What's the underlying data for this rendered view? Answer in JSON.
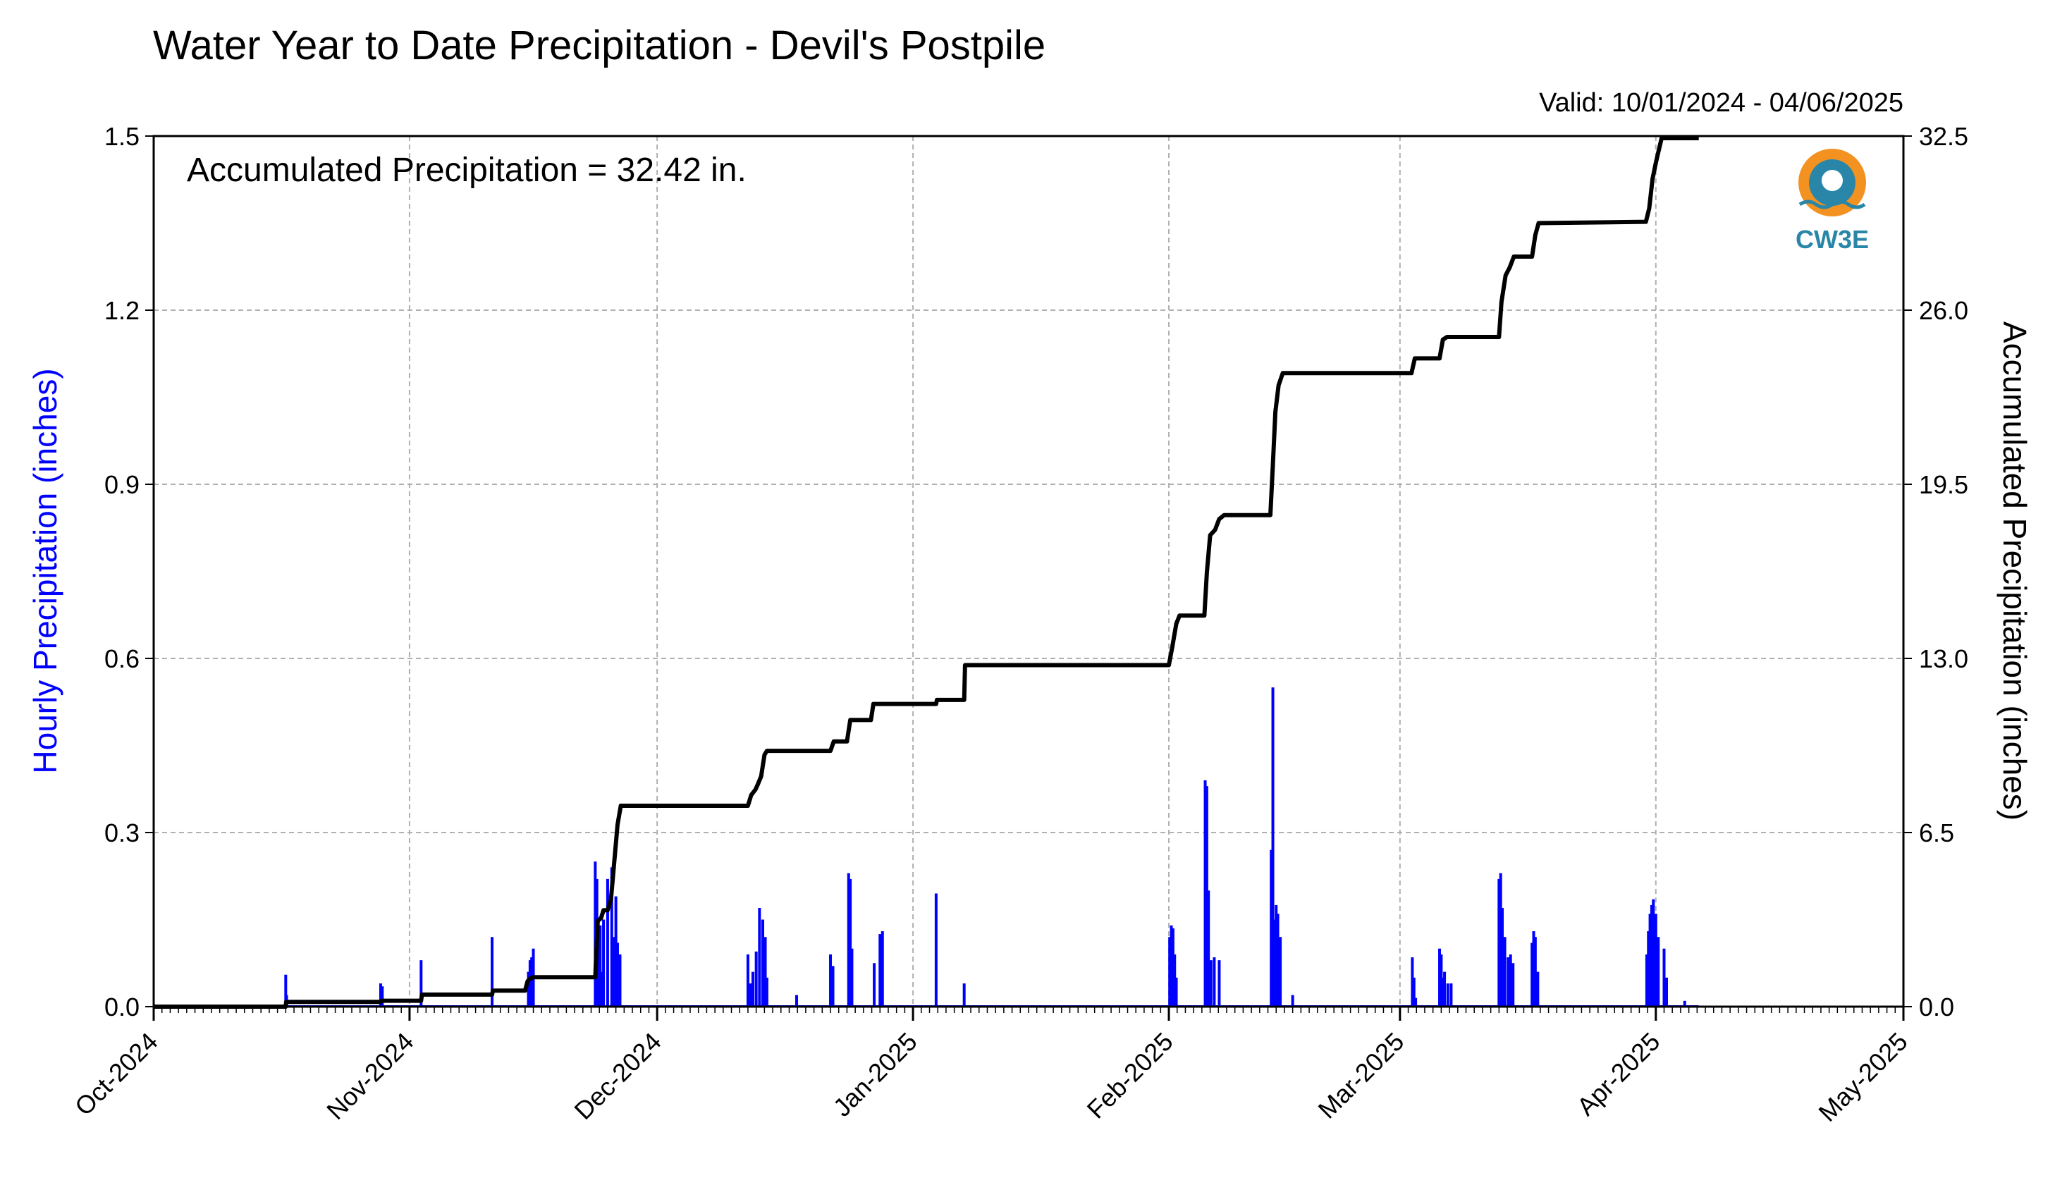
{
  "chart_data": {
    "type": "bar+line",
    "title": "Water Year to Date Precipitation - Devil's Postpile",
    "valid_text": "Valid: 10/01/2024 - 04/06/2025",
    "annotation": "Accumulated Precipitation = 32.42 in.",
    "logo_text": "CW3E",
    "y_left": {
      "label": "Hourly Precipitation (inches)",
      "range": [
        0,
        1.5
      ],
      "ticks": [
        "0.0",
        "0.3",
        "0.6",
        "0.9",
        "1.2",
        "1.5"
      ],
      "color": "#0000ff"
    },
    "y_right": {
      "label": "Accumulated Precipitation (inches)",
      "range": [
        0,
        32.5
      ],
      "ticks": [
        "0.0",
        "6.5",
        "13.0",
        "19.5",
        "26.0",
        "32.5"
      ]
    },
    "x_axis": {
      "range_days": [
        0,
        212
      ],
      "month_ticks": [
        {
          "day": 0,
          "label": "Oct-2024"
        },
        {
          "day": 31,
          "label": "Nov-2024"
        },
        {
          "day": 61,
          "label": "Dec-2024"
        },
        {
          "day": 92,
          "label": "Jan-2025"
        },
        {
          "day": 123,
          "label": "Feb-2025"
        },
        {
          "day": 151,
          "label": "Mar-2025"
        },
        {
          "day": 182,
          "label": "Apr-2025"
        },
        {
          "day": 212,
          "label": "May-2025"
        }
      ]
    },
    "grid": true,
    "hourly_series": {
      "name": "Hourly Precipitation",
      "color": "#0000ff",
      "x_days": [
        16.0,
        16.1,
        27.5,
        27.7,
        32.4,
        41.0,
        45.4,
        45.6,
        45.8,
        46.0,
        53.5,
        53.7,
        53.9,
        54.1,
        54.3,
        54.5,
        55.0,
        55.5,
        55.7,
        56.0,
        56.2,
        56.5,
        72.0,
        72.3,
        72.6,
        73.0,
        73.4,
        73.8,
        74.1,
        74.3,
        77.9,
        82.0,
        82.3,
        84.2,
        84.4,
        84.6,
        87.3,
        88.0,
        88.3,
        94.8,
        98.2,
        123.1,
        123.3,
        123.5,
        123.7,
        123.9,
        127.4,
        127.6,
        127.8,
        128.1,
        128.5,
        129.1,
        135.4,
        135.6,
        135.8,
        136.0,
        136.2,
        136.5,
        138.0,
        152.5,
        152.7,
        152.9,
        155.8,
        156.0,
        156.2,
        156.4,
        156.8,
        157.2,
        163.0,
        163.2,
        163.4,
        163.7,
        164.1,
        164.4,
        164.7,
        167.0,
        167.2,
        167.4,
        167.7,
        185.5,
        180.9,
        181.1,
        181.3,
        181.5,
        181.7,
        182.0,
        182.3,
        183.0,
        183.3
      ],
      "values": [
        0.055,
        0.02,
        0.04,
        0.035,
        0.08,
        0.12,
        0.06,
        0.08,
        0.085,
        0.1,
        0.25,
        0.22,
        0.12,
        0.14,
        0.06,
        0.15,
        0.22,
        0.24,
        0.12,
        0.19,
        0.11,
        0.09,
        0.09,
        0.04,
        0.06,
        0.095,
        0.17,
        0.15,
        0.12,
        0.05,
        0.02,
        0.09,
        0.07,
        0.23,
        0.22,
        0.1,
        0.075,
        0.125,
        0.13,
        0.195,
        0.04,
        0.12,
        0.14,
        0.135,
        0.09,
        0.05,
        0.39,
        0.38,
        0.2,
        0.08,
        0.085,
        0.08,
        0.27,
        0.55,
        0.15,
        0.175,
        0.16,
        0.12,
        0.02,
        0.085,
        0.05,
        0.015,
        0.1,
        0.09,
        0.05,
        0.06,
        0.04,
        0.04,
        0.22,
        0.23,
        0.17,
        0.12,
        0.085,
        0.09,
        0.075,
        0.11,
        0.13,
        0.12,
        0.06,
        0.01,
        0.09,
        0.13,
        0.16,
        0.175,
        0.185,
        0.16,
        0.12,
        0.1,
        0.05
      ]
    },
    "accumulated_series": {
      "name": "Accumulated Precipitation",
      "color": "#000000",
      "points": [
        [
          0,
          0
        ],
        [
          16.0,
          0
        ],
        [
          16.05,
          0.18
        ],
        [
          27.5,
          0.18
        ],
        [
          27.6,
          0.22
        ],
        [
          32.4,
          0.22
        ],
        [
          32.5,
          0.45
        ],
        [
          41.0,
          0.45
        ],
        [
          41.1,
          0.6
        ],
        [
          45.0,
          0.6
        ],
        [
          45.3,
          0.95
        ],
        [
          45.6,
          1.05
        ],
        [
          46.0,
          1.1
        ],
        [
          53.5,
          1.1
        ],
        [
          53.8,
          3.2
        ],
        [
          54.2,
          3.3
        ],
        [
          54.5,
          3.6
        ],
        [
          55.0,
          3.6
        ],
        [
          55.4,
          4.0
        ],
        [
          55.8,
          5.4
        ],
        [
          56.2,
          6.8
        ],
        [
          56.6,
          7.5
        ],
        [
          72.0,
          7.5
        ],
        [
          72.4,
          7.9
        ],
        [
          72.9,
          8.1
        ],
        [
          73.2,
          8.3
        ],
        [
          73.6,
          8.6
        ],
        [
          74.0,
          9.4
        ],
        [
          74.3,
          9.55
        ],
        [
          82.0,
          9.55
        ],
        [
          82.4,
          9.9
        ],
        [
          84.0,
          9.9
        ],
        [
          84.4,
          10.7
        ],
        [
          86.9,
          10.7
        ],
        [
          87.2,
          11.3
        ],
        [
          94.8,
          11.3
        ],
        [
          94.9,
          11.45
        ],
        [
          98.2,
          11.45
        ],
        [
          98.3,
          12.75
        ],
        [
          123.0,
          12.75
        ],
        [
          123.4,
          13.4
        ],
        [
          123.9,
          14.3
        ],
        [
          124.3,
          14.6
        ],
        [
          127.3,
          14.6
        ],
        [
          127.6,
          16.2
        ],
        [
          128.0,
          17.6
        ],
        [
          128.6,
          17.8
        ],
        [
          129.1,
          18.2
        ],
        [
          129.7,
          18.35
        ],
        [
          135.3,
          18.35
        ],
        [
          135.6,
          20.2
        ],
        [
          135.9,
          22.2
        ],
        [
          136.3,
          23.2
        ],
        [
          136.8,
          23.65
        ],
        [
          152.4,
          23.65
        ],
        [
          152.8,
          24.2
        ],
        [
          155.8,
          24.2
        ],
        [
          156.2,
          24.9
        ],
        [
          156.7,
          25.0
        ],
        [
          157.2,
          25.0
        ],
        [
          163.0,
          25.0
        ],
        [
          163.3,
          26.3
        ],
        [
          163.8,
          27.3
        ],
        [
          164.3,
          27.6
        ],
        [
          164.8,
          28.0
        ],
        [
          167.0,
          28.0
        ],
        [
          167.4,
          28.8
        ],
        [
          167.8,
          29.25
        ],
        [
          180.8,
          29.3
        ],
        [
          181.2,
          29.8
        ],
        [
          181.6,
          30.9
        ],
        [
          182.0,
          31.5
        ],
        [
          182.3,
          31.9
        ],
        [
          182.7,
          32.42
        ],
        [
          187.2,
          32.42
        ]
      ]
    }
  }
}
